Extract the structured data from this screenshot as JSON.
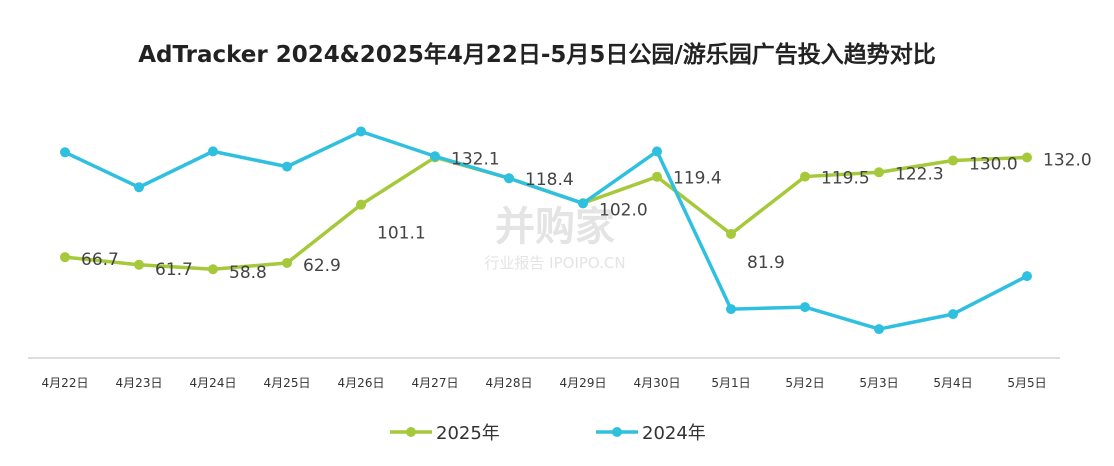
{
  "chart_data": {
    "type": "line",
    "title": "AdTracker 2024&2025年4月22日-5月5日公园/游乐园广告投入趋势对比",
    "watermark": "并购家",
    "watermark_subtitle": "行业报告 IPOIPO.CN",
    "categories": [
      "4月22日",
      "4月23日",
      "4月24日",
      "4月25日",
      "4月26日",
      "4月27日",
      "4月28日",
      "4月29日",
      "4月30日",
      "5月1日",
      "5月2日",
      "5月3日",
      "5月4日",
      "5月5日"
    ],
    "ylim": [
      0,
      150
    ],
    "series": [
      {
        "name": "2025年",
        "color": "#a5c93a",
        "values": [
          66.7,
          61.7,
          58.8,
          62.9,
          101.1,
          132.1,
          118.4,
          102.0,
          119.4,
          81.9,
          119.5,
          122.3,
          130.0,
          132.0
        ],
        "value_labels": [
          "66.7",
          "61.7",
          "58.8",
          "62.9",
          "101.1",
          "132.1",
          "118.4",
          "102.0",
          "119.4",
          "81.9",
          "119.5",
          "122.3",
          "130.0",
          "132.0"
        ]
      },
      {
        "name": "2024年",
        "color": "#2fc0e0",
        "values": [
          135.4,
          112.5,
          136,
          126,
          149,
          132.8,
          118.4,
          102,
          136,
          32.7,
          34,
          19.6,
          29.4,
          54.3
        ]
      }
    ]
  }
}
